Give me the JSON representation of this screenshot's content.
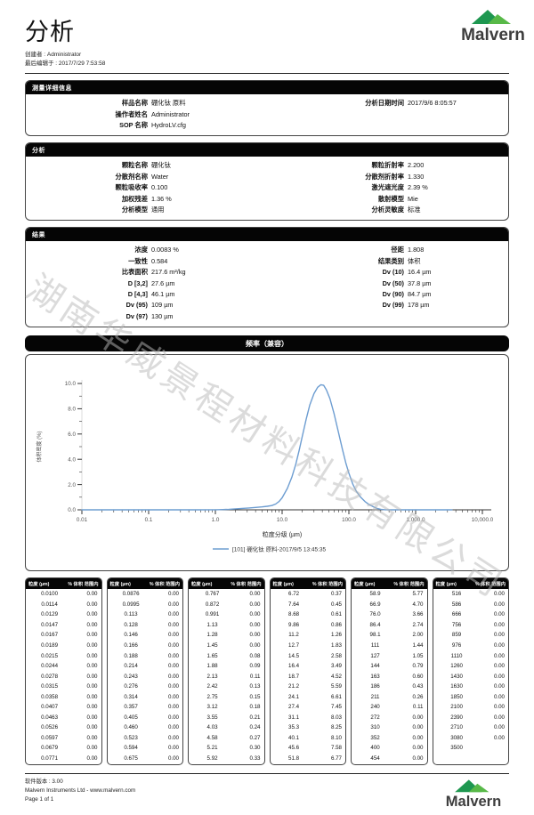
{
  "header": {
    "title": "分析",
    "creator": "创建者 : Administrator",
    "edited": "最后编辑于 : 2017/7/29 7:53:58",
    "brand": "Malvern"
  },
  "brand_colors": {
    "mountain_dark": "#1e9750",
    "mountain_light": "#58b948",
    "text": "#3d3d3d"
  },
  "sections": {
    "measurement": {
      "title": "测量详细信息",
      "left": [
        {
          "label": "样品名称",
          "value": "硼化钛 原料"
        },
        {
          "label": "操作者姓名",
          "value": "Administrator"
        },
        {
          "label": "SOP 名称",
          "value": "HydroLV.cfg"
        }
      ],
      "right": [
        {
          "label": "分析日期时间",
          "value": "2017/9/6 8:05:57"
        }
      ]
    },
    "analysis": {
      "title": "分析",
      "left": [
        {
          "label": "颗粒名称",
          "value": "硼化钛"
        },
        {
          "label": "分散剂名称",
          "value": "Water"
        },
        {
          "label": "颗粒吸收率",
          "value": "0.100"
        },
        {
          "label": "加权残差",
          "value": "1.36 %"
        },
        {
          "label": "分析模型",
          "value": "通用"
        }
      ],
      "right": [
        {
          "label": "颗粒折射率",
          "value": "2.200"
        },
        {
          "label": "分散剂折射率",
          "value": "1.330"
        },
        {
          "label": "激光遮光度",
          "value": "2.39 %"
        },
        {
          "label": "散射模型",
          "value": "Mie"
        },
        {
          "label": "分析灵敏度",
          "value": "标准"
        }
      ]
    },
    "result": {
      "title": "结果",
      "left": [
        {
          "label": "浓度",
          "value": "0.0083 %"
        },
        {
          "label": "一致性",
          "value": "0.584"
        },
        {
          "label": "比表面积",
          "value": "217.6 m²/kg"
        },
        {
          "label": "D [3,2]",
          "value": "27.6 µm"
        },
        {
          "label": "D [4,3]",
          "value": "46.1 µm"
        },
        {
          "label": "Dv (95)",
          "value": "109 µm"
        },
        {
          "label": "Dv (97)",
          "value": "130 µm"
        }
      ],
      "right": [
        {
          "label": "径距",
          "value": "1.808"
        },
        {
          "label": "结果类别",
          "value": "体积"
        },
        {
          "label": "Dv (10)",
          "value": "16.4 µm"
        },
        {
          "label": "Dv (50)",
          "value": "37.8 µm"
        },
        {
          "label": "Dv (90)",
          "value": "84.7 µm"
        },
        {
          "label": "Dv (99)",
          "value": "178 µm"
        }
      ]
    }
  },
  "chart_data": {
    "type": "line",
    "title": "频率（兼容）",
    "xlabel": "粒度分级 (µm)",
    "ylabel": "体积密度 (%)",
    "xscale": "log",
    "xlim": [
      0.01,
      10000
    ],
    "ylim": [
      0,
      10
    ],
    "xticks": [
      "0.01",
      "0.1",
      "1.0",
      "10.0",
      "100.0",
      "1,000.0",
      "10,000.0"
    ],
    "yticks": [
      "0.0",
      "2.0",
      "4.0",
      "6.0",
      "8.0",
      "10.0"
    ],
    "legend": "[101] 硼化钛 原料-2017/9/5 13:45:35",
    "line_color": "#6d9dd1",
    "series": [
      {
        "name": "[101] 硼化钛 原料-2017/9/5 13:45:35",
        "points": [
          [
            0.01,
            0
          ],
          [
            0.1,
            0
          ],
          [
            0.5,
            0
          ],
          [
            1.0,
            0.01
          ],
          [
            1.3,
            0.02
          ],
          [
            1.6,
            0.04
          ],
          [
            2.0,
            0.08
          ],
          [
            2.5,
            0.11
          ],
          [
            3.2,
            0.15
          ],
          [
            4.0,
            0.19
          ],
          [
            5.0,
            0.23
          ],
          [
            6.0,
            0.28
          ],
          [
            7.0,
            0.34
          ],
          [
            8.0,
            0.46
          ],
          [
            9.0,
            0.66
          ],
          [
            10,
            0.95
          ],
          [
            12,
            1.7
          ],
          [
            14,
            2.6
          ],
          [
            16,
            3.6
          ],
          [
            18,
            4.7
          ],
          [
            20,
            5.8
          ],
          [
            23,
            7.2
          ],
          [
            26,
            8.3
          ],
          [
            30,
            9.2
          ],
          [
            34,
            9.7
          ],
          [
            38,
            9.9
          ],
          [
            42,
            9.85
          ],
          [
            46,
            9.5
          ],
          [
            52,
            8.8
          ],
          [
            60,
            7.6
          ],
          [
            70,
            6.1
          ],
          [
            80,
            4.8
          ],
          [
            90,
            3.7
          ],
          [
            100,
            2.9
          ],
          [
            115,
            2.0
          ],
          [
            130,
            1.45
          ],
          [
            150,
            1.0
          ],
          [
            175,
            0.65
          ],
          [
            200,
            0.42
          ],
          [
            230,
            0.25
          ],
          [
            260,
            0.12
          ],
          [
            300,
            0.04
          ],
          [
            350,
            0.01
          ],
          [
            400,
            0
          ],
          [
            1000,
            0
          ],
          [
            3500,
            0
          ]
        ]
      }
    ]
  },
  "watermark": "湖南华威景程材料科技有限公司",
  "table": {
    "header_size": "粒度 (µm)",
    "header_pct": "% 体积 范围内",
    "groups": [
      {
        "rows": [
          [
            "0.0100",
            "0.00"
          ],
          [
            "0.0114",
            "0.00"
          ],
          [
            "0.0129",
            "0.00"
          ],
          [
            "0.0147",
            "0.00"
          ],
          [
            "0.0167",
            "0.00"
          ],
          [
            "0.0189",
            "0.00"
          ],
          [
            "0.0215",
            "0.00"
          ],
          [
            "0.0244",
            "0.00"
          ],
          [
            "0.0278",
            "0.00"
          ],
          [
            "0.0315",
            "0.00"
          ],
          [
            "0.0358",
            "0.00"
          ],
          [
            "0.0407",
            "0.00"
          ],
          [
            "0.0463",
            "0.00"
          ],
          [
            "0.0526",
            "0.00"
          ],
          [
            "0.0597",
            "0.00"
          ],
          [
            "0.0679",
            "0.00"
          ],
          [
            "0.0771",
            "0.00"
          ]
        ]
      },
      {
        "rows": [
          [
            "0.0876",
            "0.00"
          ],
          [
            "0.0995",
            "0.00"
          ],
          [
            "0.113",
            "0.00"
          ],
          [
            "0.128",
            "0.00"
          ],
          [
            "0.146",
            "0.00"
          ],
          [
            "0.166",
            "0.00"
          ],
          [
            "0.188",
            "0.00"
          ],
          [
            "0.214",
            "0.00"
          ],
          [
            "0.243",
            "0.00"
          ],
          [
            "0.276",
            "0.00"
          ],
          [
            "0.314",
            "0.00"
          ],
          [
            "0.357",
            "0.00"
          ],
          [
            "0.405",
            "0.00"
          ],
          [
            "0.460",
            "0.00"
          ],
          [
            "0.523",
            "0.00"
          ],
          [
            "0.594",
            "0.00"
          ],
          [
            "0.675",
            "0.00"
          ]
        ]
      },
      {
        "rows": [
          [
            "0.767",
            "0.00"
          ],
          [
            "0.872",
            "0.00"
          ],
          [
            "0.991",
            "0.00"
          ],
          [
            "1.13",
            "0.00"
          ],
          [
            "1.28",
            "0.00"
          ],
          [
            "1.45",
            "0.00"
          ],
          [
            "1.65",
            "0.08"
          ],
          [
            "1.88",
            "0.09"
          ],
          [
            "2.13",
            "0.11"
          ],
          [
            "2.42",
            "0.13"
          ],
          [
            "2.75",
            "0.15"
          ],
          [
            "3.12",
            "0.18"
          ],
          [
            "3.55",
            "0.21"
          ],
          [
            "4.03",
            "0.24"
          ],
          [
            "4.58",
            "0.27"
          ],
          [
            "5.21",
            "0.30"
          ],
          [
            "5.92",
            "0.33"
          ]
        ]
      },
      {
        "rows": [
          [
            "6.72",
            "0.37"
          ],
          [
            "7.64",
            "0.45"
          ],
          [
            "8.68",
            "0.61"
          ],
          [
            "9.86",
            "0.86"
          ],
          [
            "11.2",
            "1.26"
          ],
          [
            "12.7",
            "1.83"
          ],
          [
            "14.5",
            "2.58"
          ],
          [
            "16.4",
            "3.49"
          ],
          [
            "18.7",
            "4.52"
          ],
          [
            "21.2",
            "5.59"
          ],
          [
            "24.1",
            "6.61"
          ],
          [
            "27.4",
            "7.45"
          ],
          [
            "31.1",
            "8.03"
          ],
          [
            "35.3",
            "8.25"
          ],
          [
            "40.1",
            "8.10"
          ],
          [
            "45.6",
            "7.58"
          ],
          [
            "51.8",
            "6.77"
          ]
        ]
      },
      {
        "rows": [
          [
            "58.9",
            "5.77"
          ],
          [
            "66.9",
            "4.70"
          ],
          [
            "76.0",
            "3.66"
          ],
          [
            "86.4",
            "2.74"
          ],
          [
            "98.1",
            "2.00"
          ],
          [
            "111",
            "1.44"
          ],
          [
            "127",
            "1.05"
          ],
          [
            "144",
            "0.79"
          ],
          [
            "163",
            "0.60"
          ],
          [
            "186",
            "0.43"
          ],
          [
            "211",
            "0.26"
          ],
          [
            "240",
            "0.11"
          ],
          [
            "272",
            "0.00"
          ],
          [
            "310",
            "0.00"
          ],
          [
            "352",
            "0.00"
          ],
          [
            "400",
            "0.00"
          ],
          [
            "454",
            "0.00"
          ]
        ]
      },
      {
        "rows": [
          [
            "516",
            "0.00"
          ],
          [
            "586",
            "0.00"
          ],
          [
            "666",
            "0.00"
          ],
          [
            "756",
            "0.00"
          ],
          [
            "859",
            "0.00"
          ],
          [
            "976",
            "0.00"
          ],
          [
            "1110",
            "0.00"
          ],
          [
            "1260",
            "0.00"
          ],
          [
            "1430",
            "0.00"
          ],
          [
            "1630",
            "0.00"
          ],
          [
            "1850",
            "0.00"
          ],
          [
            "2100",
            "0.00"
          ],
          [
            "2390",
            "0.00"
          ],
          [
            "2710",
            "0.00"
          ],
          [
            "3080",
            "0.00"
          ],
          [
            "3500",
            ""
          ]
        ]
      }
    ]
  },
  "footer": {
    "version": "软件版本 : 3.00",
    "company": "Malvern Instruments Ltd - www.malvern.com",
    "page": "Page 1 of 1"
  }
}
